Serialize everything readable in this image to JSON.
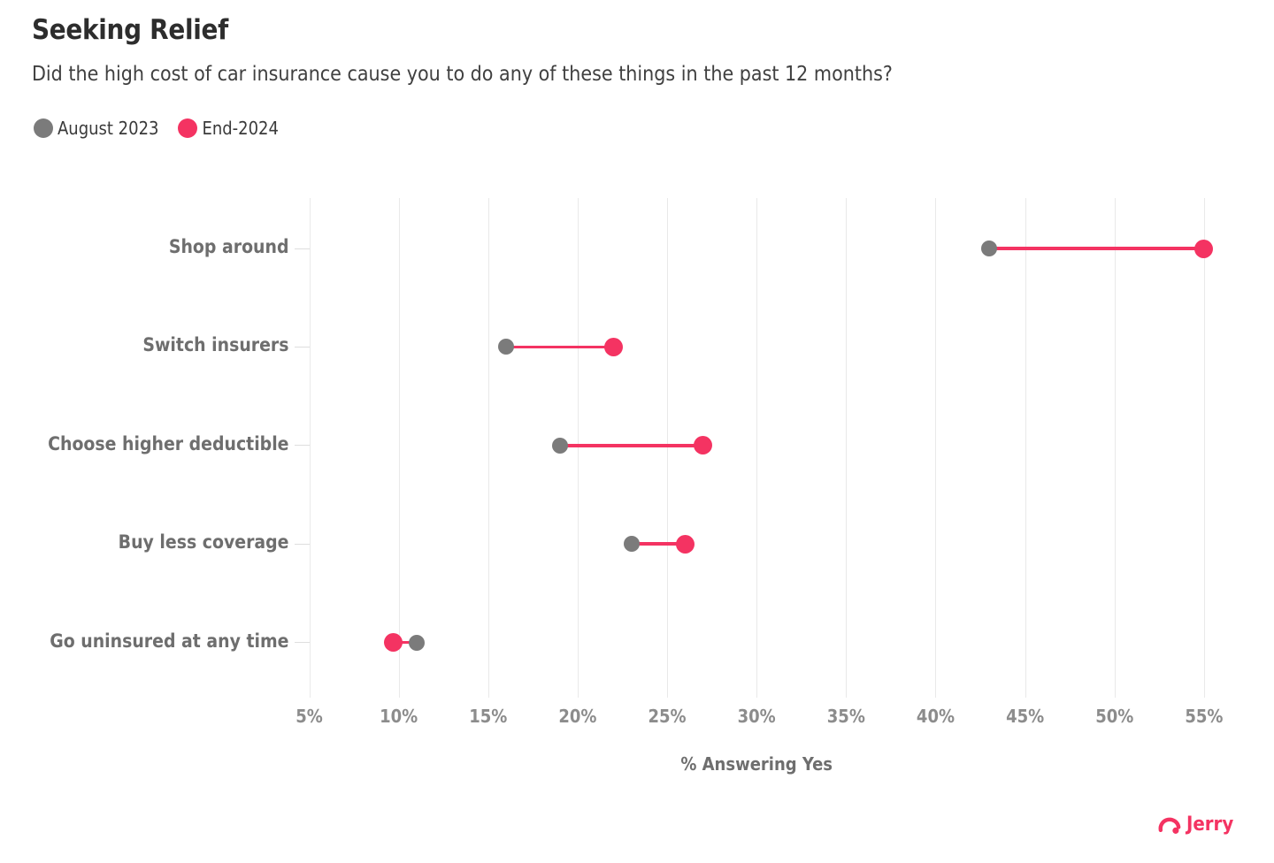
{
  "header": {
    "title": "Seeking Relief",
    "subtitle": "Did the high cost of car insurance cause you to do any of these things in the past 12 months?"
  },
  "colors": {
    "august_2023": "#7b7b7b",
    "end_2024": "#f43362",
    "grid": "#e9e9e9",
    "category_text": "#6e6e6e",
    "axis_tick_text": "#8c8c8c",
    "title_text": "#2d2d2d"
  },
  "chart_data": {
    "type": "dumbbell",
    "title": "Seeking Relief",
    "subtitle": "Did the high cost of car insurance cause you to do any of these things in the past 12 months?",
    "categories": [
      "Shop around",
      "Switch insurers",
      "Choose higher deductible",
      "Buy less coverage",
      "Go uninsured at any time"
    ],
    "series": [
      {
        "name": "August 2023",
        "color": "#7b7b7b",
        "values": [
          43,
          16,
          19,
          23,
          11
        ]
      },
      {
        "name": "End-2024",
        "color": "#f43362",
        "values": [
          55,
          22,
          27,
          26,
          9.7
        ]
      }
    ],
    "xlabel": "% Answering Yes",
    "x_ticks": [
      "5%",
      "10%",
      "15%",
      "20%",
      "25%",
      "30%",
      "35%",
      "40%",
      "45%",
      "50%",
      "55%"
    ],
    "x_tick_values": [
      5,
      10,
      15,
      20,
      25,
      30,
      35,
      40,
      45,
      50,
      55
    ],
    "xlim": [
      5,
      55
    ],
    "grid": true,
    "legend_position": "top-left"
  },
  "footer": {
    "brand": "Jerry"
  }
}
